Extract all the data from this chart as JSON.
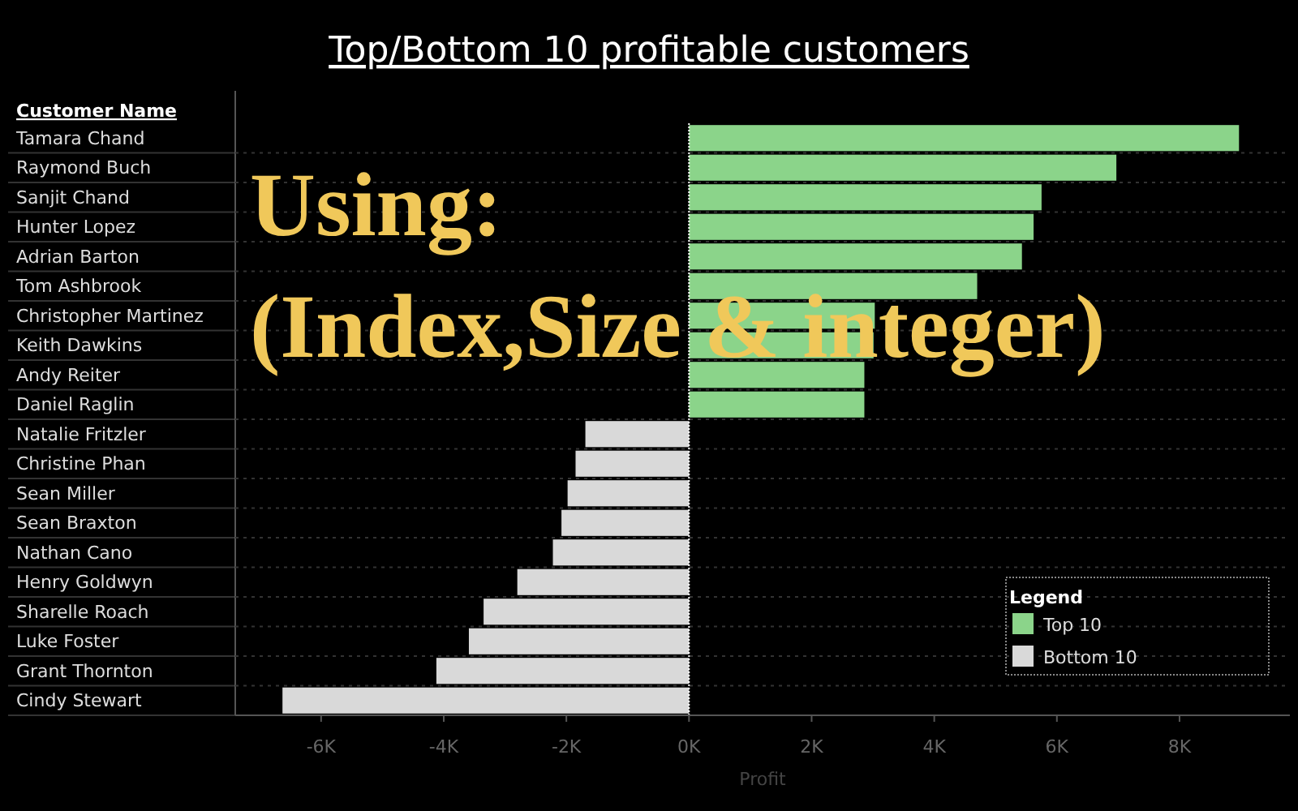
{
  "chart_data": {
    "type": "bar",
    "orientation": "horizontal",
    "title": "Top/Bottom 10 profitable customers",
    "xlabel": "Profit",
    "ylabel": "Customer Name",
    "categories": [
      "Tamara Chand",
      "Raymond Buch",
      "Sanjit Chand",
      "Hunter Lopez",
      "Adrian Barton",
      "Tom Ashbrook",
      "Christopher Martinez",
      "Keith Dawkins",
      "Andy Reiter",
      "Daniel Raglin",
      "Natalie Fritzler",
      "Christine Phan",
      "Sean Miller",
      "Sean Braxton",
      "Nathan Cano",
      "Henry Goldwyn",
      "Sharelle Roach",
      "Luke Foster",
      "Grant Thornton",
      "Cindy Stewart"
    ],
    "series": [
      {
        "name": "Top 10",
        "color": "#8bd48a",
        "values": [
          8970,
          6970,
          5750,
          5620,
          5430,
          4700,
          3030,
          3010,
          2860,
          2860,
          null,
          null,
          null,
          null,
          null,
          null,
          null,
          null,
          null,
          null
        ]
      },
      {
        "name": "Bottom 10",
        "color": "#d9d9d9",
        "values": [
          null,
          null,
          null,
          null,
          null,
          null,
          null,
          null,
          null,
          null,
          -1690,
          -1850,
          -1980,
          -2080,
          -2220,
          -2800,
          -3350,
          -3590,
          -4120,
          -6630
        ]
      }
    ],
    "xlim": [
      -7400,
      9800
    ],
    "xticks": [
      {
        "value": -6000,
        "label": "-6K"
      },
      {
        "value": -4000,
        "label": "-4K"
      },
      {
        "value": -2000,
        "label": "-2K"
      },
      {
        "value": 0,
        "label": "0K"
      },
      {
        "value": 2000,
        "label": "2K"
      },
      {
        "value": 4000,
        "label": "4K"
      },
      {
        "value": 6000,
        "label": "6K"
      },
      {
        "value": 8000,
        "label": "8K"
      }
    ],
    "ref_lines": [
      {
        "axis": "x",
        "value": 0,
        "color": "#ffffff",
        "line_style": "dotted"
      }
    ],
    "grid": "y",
    "legend": "bottom right",
    "legend_title": "Legend",
    "annotations": [
      "Using:",
      "(Index,Size & integer)"
    ]
  }
}
